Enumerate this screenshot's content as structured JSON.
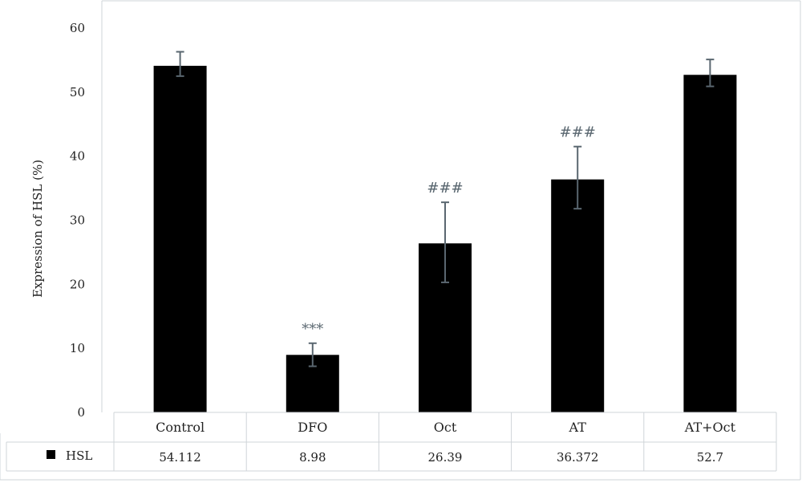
{
  "chart_data": {
    "type": "bar",
    "categories": [
      "Control",
      "DFO",
      "Oct",
      "AT",
      "AT+Oct"
    ],
    "series": [
      {
        "name": "HSL",
        "values": [
          54.112,
          8.98,
          26.39,
          36.372,
          52.7
        ]
      }
    ],
    "value_labels": [
      "54.112",
      "8.98",
      "26.39",
      "36.372",
      "52.7"
    ],
    "error_bars": [
      {
        "low": 52.5,
        "high": 56.3
      },
      {
        "low": 7.2,
        "high": 10.8
      },
      {
        "low": 20.3,
        "high": 32.8
      },
      {
        "low": 31.8,
        "high": 41.5
      },
      {
        "low": 50.9,
        "high": 55.1
      }
    ],
    "significance": [
      "",
      "***",
      "###",
      "###",
      ""
    ],
    "ylabel": "Expression of HSL (%)",
    "ylim": [
      0,
      60
    ],
    "yticks": [
      0,
      10,
      20,
      30,
      40,
      50,
      60
    ],
    "legend": "data-table",
    "grid": false,
    "colors": {
      "bar": "#000000",
      "error": "#5a6770",
      "border": "#cfd4d8"
    }
  }
}
